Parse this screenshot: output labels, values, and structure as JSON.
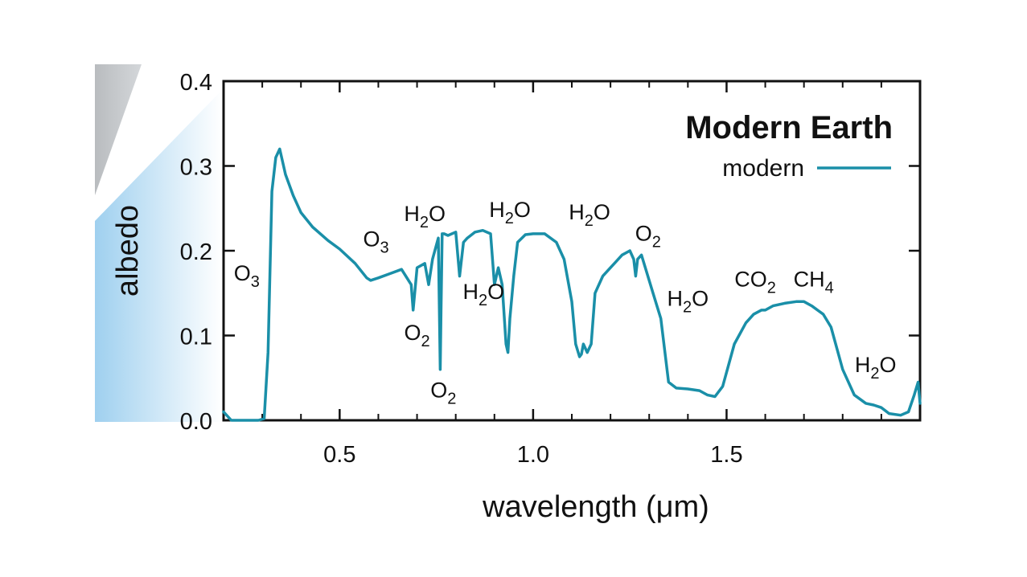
{
  "chart_data": {
    "type": "line",
    "title": "Modern Earth",
    "xlabel": "wavelength (μm)",
    "ylabel": "albedo",
    "xlim": [
      0.2,
      2.0
    ],
    "ylim": [
      0.0,
      0.4
    ],
    "xticks": [
      0.5,
      1.0,
      1.5
    ],
    "xtick_labels": [
      "0.5",
      "1.0",
      "1.5"
    ],
    "yticks": [
      0.0,
      0.1,
      0.2,
      0.3,
      0.4
    ],
    "ytick_labels": [
      "0.0",
      "0.1",
      "0.2",
      "0.3",
      "0.4"
    ],
    "grid": false,
    "legend_position": "top-right",
    "series": [
      {
        "name": "modern",
        "color": "#1a8fa8",
        "x": [
          0.2,
          0.22,
          0.25,
          0.29,
          0.305,
          0.315,
          0.325,
          0.335,
          0.345,
          0.36,
          0.38,
          0.4,
          0.43,
          0.47,
          0.5,
          0.54,
          0.57,
          0.58,
          0.6,
          0.63,
          0.66,
          0.685,
          0.69,
          0.7,
          0.72,
          0.73,
          0.74,
          0.755,
          0.76,
          0.762,
          0.765,
          0.77,
          0.78,
          0.8,
          0.81,
          0.82,
          0.83,
          0.85,
          0.87,
          0.89,
          0.9,
          0.91,
          0.92,
          0.93,
          0.935,
          0.94,
          0.95,
          0.96,
          0.98,
          1.0,
          1.03,
          1.06,
          1.08,
          1.1,
          1.11,
          1.12,
          1.125,
          1.13,
          1.14,
          1.15,
          1.16,
          1.18,
          1.2,
          1.23,
          1.25,
          1.26,
          1.265,
          1.27,
          1.28,
          1.29,
          1.31,
          1.33,
          1.35,
          1.37,
          1.4,
          1.43,
          1.45,
          1.47,
          1.49,
          1.52,
          1.55,
          1.57,
          1.59,
          1.6,
          1.62,
          1.65,
          1.68,
          1.7,
          1.72,
          1.75,
          1.77,
          1.8,
          1.83,
          1.86,
          1.88,
          1.9,
          1.92,
          1.95,
          1.97,
          1.985,
          1.995,
          2.0
        ],
        "y": [
          0.01,
          0.0,
          0.0,
          0.0,
          0.002,
          0.08,
          0.27,
          0.31,
          0.32,
          0.29,
          0.265,
          0.245,
          0.228,
          0.212,
          0.202,
          0.185,
          0.168,
          0.165,
          0.168,
          0.173,
          0.178,
          0.16,
          0.13,
          0.18,
          0.185,
          0.16,
          0.19,
          0.215,
          0.06,
          0.13,
          0.22,
          0.22,
          0.218,
          0.222,
          0.17,
          0.21,
          0.215,
          0.222,
          0.224,
          0.22,
          0.16,
          0.18,
          0.16,
          0.09,
          0.08,
          0.12,
          0.17,
          0.21,
          0.219,
          0.22,
          0.22,
          0.21,
          0.19,
          0.14,
          0.09,
          0.075,
          0.078,
          0.09,
          0.08,
          0.09,
          0.15,
          0.17,
          0.18,
          0.195,
          0.2,
          0.19,
          0.17,
          0.19,
          0.195,
          0.18,
          0.15,
          0.12,
          0.045,
          0.038,
          0.037,
          0.035,
          0.03,
          0.028,
          0.04,
          0.09,
          0.115,
          0.125,
          0.13,
          0.13,
          0.135,
          0.138,
          0.14,
          0.14,
          0.135,
          0.125,
          0.11,
          0.06,
          0.03,
          0.02,
          0.018,
          0.015,
          0.008,
          0.006,
          0.01,
          0.03,
          0.045,
          0.02
        ]
      }
    ],
    "annotations": [
      {
        "base": "O",
        "sub": "3",
        "x": 0.26,
        "y": 0.165
      },
      {
        "base": "O",
        "sub": "3",
        "x": 0.594,
        "y": 0.205
      },
      {
        "base": "H",
        "sub": "2",
        "tail": "O",
        "x": 0.72,
        "y": 0.235
      },
      {
        "base": "O",
        "sub": "2",
        "x": 0.7,
        "y": 0.095
      },
      {
        "base": "O",
        "sub": "2",
        "x": 0.768,
        "y": 0.027
      },
      {
        "base": "H",
        "sub": "2",
        "tail": "O",
        "x": 0.872,
        "y": 0.143
      },
      {
        "base": "H",
        "sub": "2",
        "tail": "O",
        "x": 0.94,
        "y": 0.24
      },
      {
        "base": "H",
        "sub": "2",
        "tail": "O",
        "x": 1.146,
        "y": 0.237
      },
      {
        "base": "O",
        "sub": "2",
        "x": 1.297,
        "y": 0.212
      },
      {
        "base": "H",
        "sub": "2",
        "tail": "O",
        "x": 1.4,
        "y": 0.135
      },
      {
        "base": "CO",
        "sub": "2",
        "x": 1.574,
        "y": 0.158
      },
      {
        "base": "CH",
        "sub": "4",
        "x": 1.725,
        "y": 0.158
      },
      {
        "base": "H",
        "sub": "2",
        "tail": "O",
        "x": 1.885,
        "y": 0.057
      }
    ]
  }
}
